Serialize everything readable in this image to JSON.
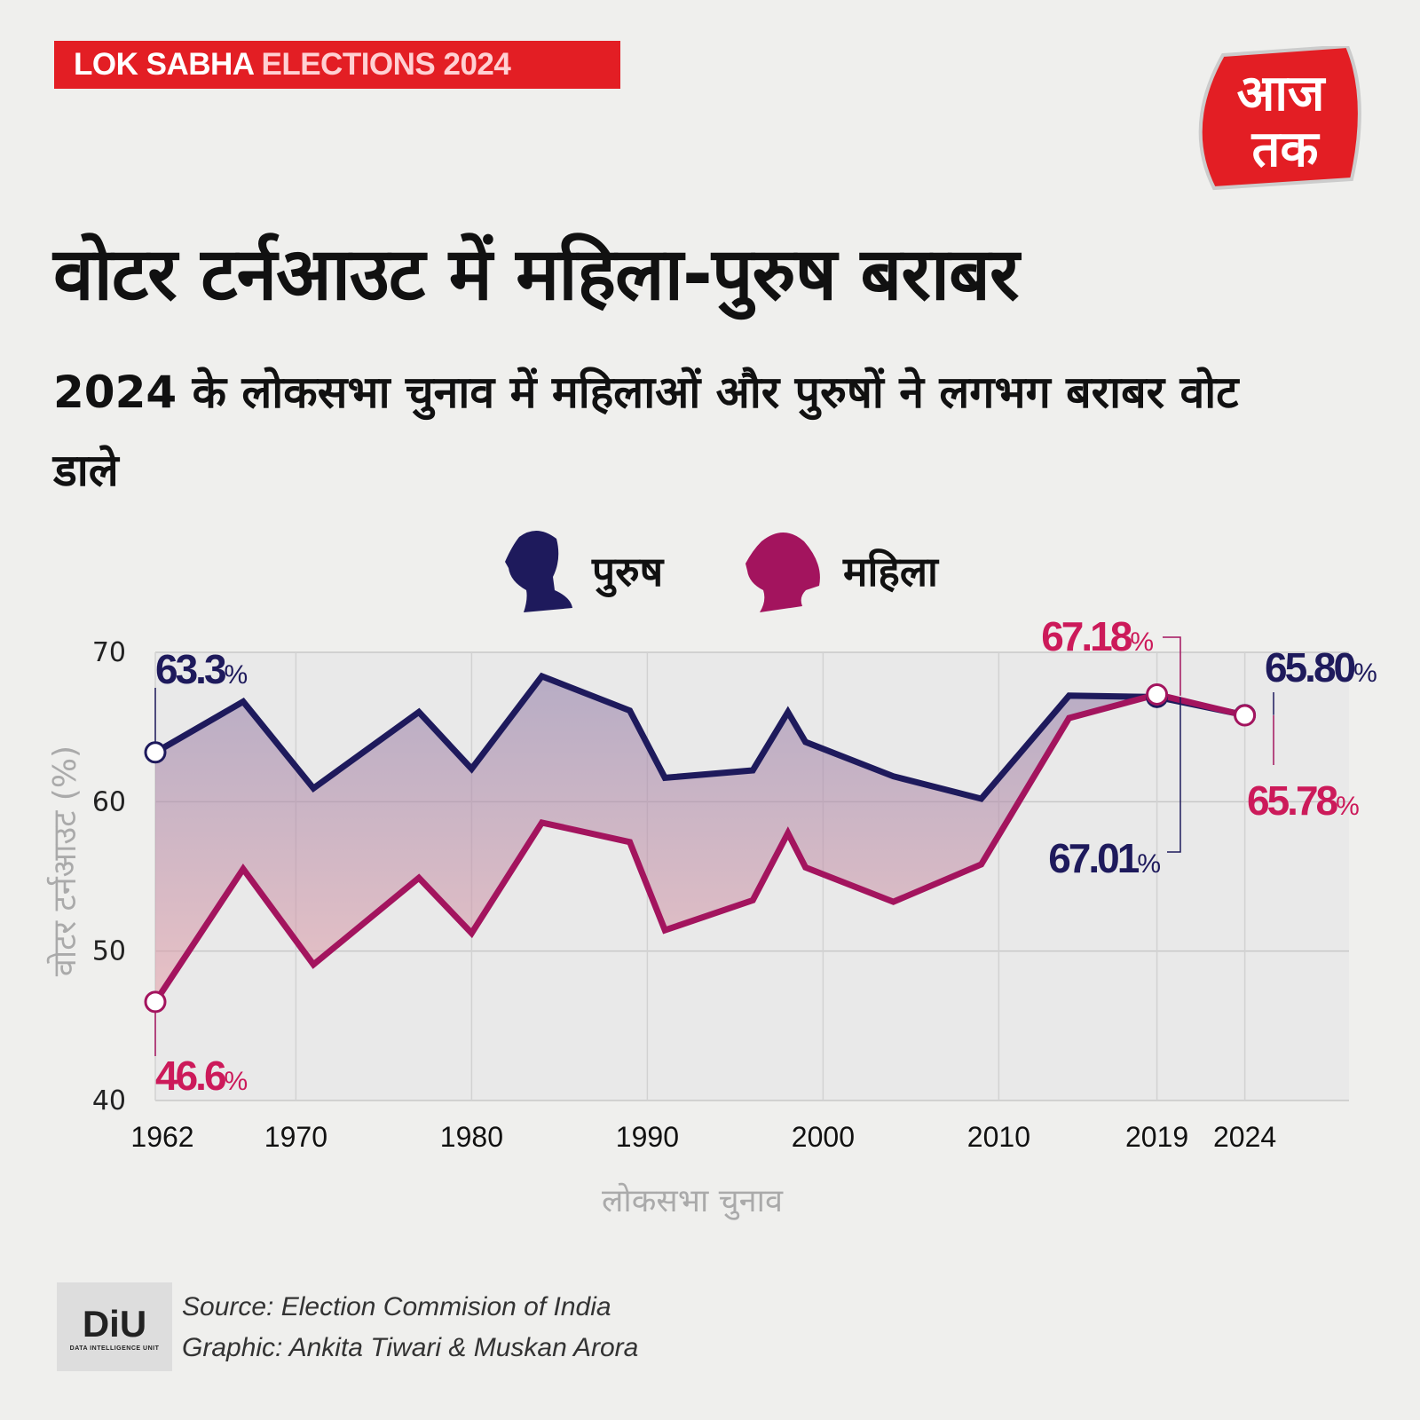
{
  "header": {
    "badge_part1": "LOK SABHA ",
    "badge_part2": "ELECTIONS 2024",
    "logo_text": "आज तक"
  },
  "title": "वोटर टर्नआउट में महिला-पुरुष बराबर",
  "subtitle": "2024 के लोकसभा चुनाव में महिलाओं और पुरुषों ने लगभग बराबर वोट डाले",
  "legend": [
    {
      "label": "पुरुष",
      "icon": "male-silhouette-icon"
    },
    {
      "label": "महिला",
      "icon": "female-silhouette-icon"
    }
  ],
  "colors": {
    "male": "#1e1a5c",
    "female": "#a3145e",
    "female_label": "#cc1a5a",
    "badge": "#e31e24"
  },
  "footer": {
    "source": "Source: Election Commision of India",
    "graphic": "Graphic: Ankita Tiwari & Muskan Arora",
    "logo_text": "DiU",
    "logo_sub": "DATA INTELLIGENCE UNIT"
  },
  "chart_data": {
    "type": "line",
    "xlabel": "लोकसभा चुनाव",
    "ylabel": "वोटर टर्नआउट (%)",
    "ylim": [
      40,
      70
    ],
    "yticks": [
      "40",
      "50",
      "60",
      "70"
    ],
    "xticks": [
      "1962",
      "1970",
      "1980",
      "1990",
      "2000",
      "2010",
      "2019",
      "2024"
    ],
    "x": [
      1962,
      1967,
      1971,
      1977,
      1980,
      1984,
      1989,
      1991,
      1996,
      1998,
      1999,
      2004,
      2009,
      2014,
      2019,
      2024
    ],
    "series": [
      {
        "name": "पुरुष",
        "values": [
          63.3,
          66.7,
          60.9,
          66.0,
          62.2,
          68.4,
          66.1,
          61.6,
          62.1,
          66.0,
          64.0,
          61.7,
          60.2,
          67.1,
          67.01,
          65.8
        ]
      },
      {
        "name": "महिला",
        "values": [
          46.6,
          55.5,
          49.1,
          54.9,
          51.2,
          58.6,
          57.3,
          51.4,
          53.4,
          57.9,
          55.6,
          53.3,
          55.8,
          65.6,
          67.18,
          65.78
        ]
      }
    ],
    "annotations": [
      {
        "series": "male",
        "year": 1962,
        "value": "63.3",
        "unit": "%"
      },
      {
        "series": "female",
        "year": 1962,
        "value": "46.6",
        "unit": "%"
      },
      {
        "series": "female",
        "year": 2019,
        "value": "67.18",
        "unit": "%"
      },
      {
        "series": "male",
        "year": 2019,
        "value": "67.01",
        "unit": "%"
      },
      {
        "series": "male",
        "year": 2024,
        "value": "65.80",
        "unit": "%"
      },
      {
        "series": "female",
        "year": 2024,
        "value": "65.78",
        "unit": "%"
      }
    ]
  }
}
